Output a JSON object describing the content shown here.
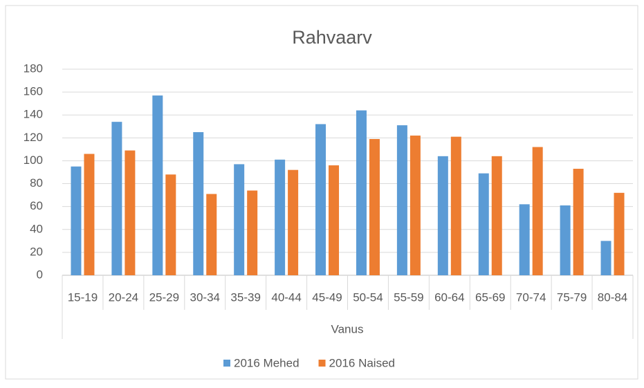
{
  "chart_data": {
    "type": "bar",
    "title": "Rahvaarv",
    "xlabel": "Vanus",
    "categories": [
      "15-19",
      "20-24",
      "25-29",
      "30-34",
      "35-39",
      "40-44",
      "45-49",
      "50-54",
      "55-59",
      "60-64",
      "65-69",
      "70-74",
      "75-79",
      "80-84"
    ],
    "series": [
      {
        "name": "2016 Mehed",
        "color": "#5b9bd5",
        "values": [
          95,
          134,
          157,
          125,
          97,
          101,
          132,
          144,
          131,
          104,
          89,
          62,
          61,
          30
        ]
      },
      {
        "name": "2016 Naised",
        "color": "#ed7d31",
        "values": [
          106,
          109,
          88,
          71,
          74,
          92,
          96,
          119,
          122,
          121,
          104,
          112,
          93,
          72
        ]
      }
    ],
    "ylim": [
      0,
      180
    ],
    "yticks": [
      0,
      20,
      40,
      60,
      80,
      100,
      120,
      140,
      160,
      180
    ],
    "grid": true,
    "legend": "bottom"
  }
}
